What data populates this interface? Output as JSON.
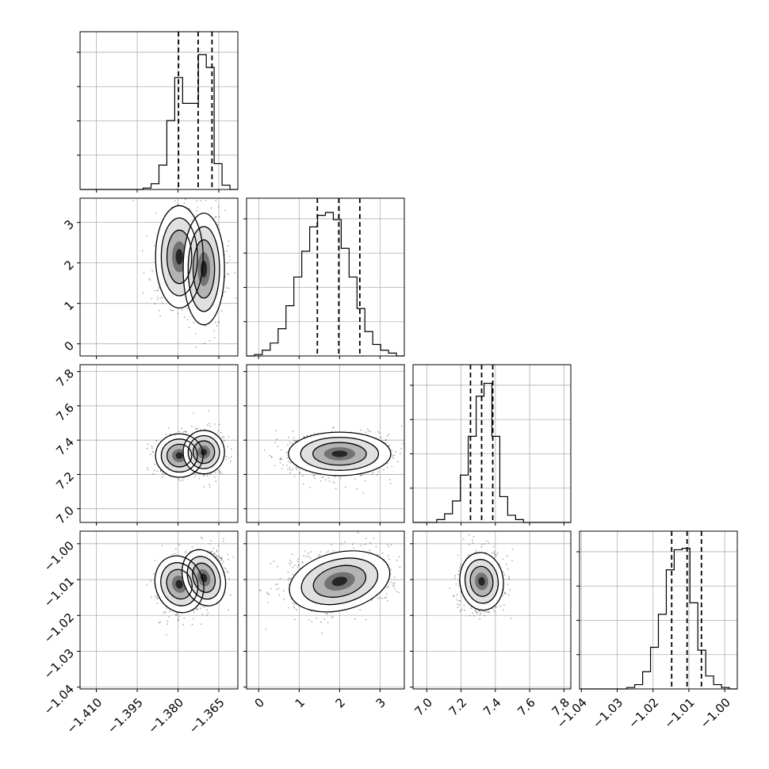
{
  "chart_data": {
    "type": "scatter",
    "title": "",
    "grid": true,
    "parameters": [
      {
        "range": [
          -1.416,
          -1.358
        ],
        "ticks": [
          -1.41,
          -1.395,
          -1.38,
          -1.365
        ],
        "tick_labels": [
          "−1.410",
          "−1.395",
          "−1.380",
          "−1.365"
        ],
        "quantiles": [
          -1.3798,
          -1.3726,
          -1.3675
        ],
        "hist_bins": [
          0,
          0,
          0,
          0,
          0,
          0,
          0,
          0,
          0.01,
          0.04,
          0.17,
          0.48,
          0.78,
          0.6,
          0.6,
          0.94,
          0.85,
          0.18,
          0.03,
          0
        ]
      },
      {
        "range": [
          -0.3,
          3.6
        ],
        "ticks": [
          0,
          1,
          2,
          3
        ],
        "tick_labels": [
          "0",
          "1",
          "2",
          "3"
        ],
        "quantiles": [
          1.45,
          1.98,
          2.5
        ],
        "hist_bins": [
          0,
          0.01,
          0.04,
          0.09,
          0.19,
          0.35,
          0.55,
          0.73,
          0.9,
          0.98,
          1.0,
          0.95,
          0.75,
          0.55,
          0.33,
          0.17,
          0.08,
          0.04,
          0.02,
          0
        ]
      },
      {
        "range": [
          6.92,
          7.84
        ],
        "ticks": [
          7.0,
          7.2,
          7.4,
          7.6,
          7.8
        ],
        "tick_labels": [
          "7.0",
          "7.2",
          "7.4",
          "7.6",
          "7.8"
        ],
        "quantiles": [
          7.255,
          7.32,
          7.385
        ],
        "hist_bins": [
          0,
          0,
          0,
          0.02,
          0.06,
          0.15,
          0.33,
          0.6,
          0.88,
          0.97,
          0.6,
          0.18,
          0.05,
          0.02,
          0,
          0,
          0,
          0,
          0,
          0
        ]
      },
      {
        "range": [
          -1.0405,
          -0.9965
        ],
        "ticks": [
          -1.04,
          -1.03,
          -1.02,
          -1.01,
          -1.0
        ],
        "tick_labels": [
          "−1.04",
          "−1.03",
          "−1.02",
          "−1.01",
          "−1.00"
        ],
        "quantiles": [
          -1.0148,
          -1.0105,
          -1.0065
        ],
        "hist_bins": [
          0,
          0,
          0,
          0,
          0,
          0,
          0.01,
          0.03,
          0.12,
          0.29,
          0.52,
          0.83,
          0.97,
          0.98,
          0.6,
          0.27,
          0.09,
          0.03,
          0.01,
          0
        ]
      }
    ],
    "y_tick_labels": {
      "1": [
        "0",
        "1",
        "2",
        "3"
      ],
      "2": [
        "7.0",
        "7.2",
        "7.4",
        "7.6",
        "7.8"
      ],
      "3": [
        "−1.04",
        "−1.03",
        "−1.02",
        "−1.01",
        "−1.00"
      ]
    },
    "pairs": [
      {
        "x": 0,
        "y": 1,
        "components": [
          {
            "mean": [
              -1.3795,
              2.15
            ],
            "sd": [
              0.0038,
              0.55
            ],
            "rho": 0.0,
            "weight": 0.45
          },
          {
            "mean": [
              -1.3705,
              1.85
            ],
            "sd": [
              0.0033,
              0.6
            ],
            "rho": 0.0,
            "weight": 0.55
          }
        ]
      },
      {
        "x": 0,
        "y": 2,
        "components": [
          {
            "mean": [
              -1.3795,
              7.31
            ],
            "sd": [
              0.0038,
              0.055
            ],
            "rho": 0.0,
            "weight": 0.45
          },
          {
            "mean": [
              -1.3705,
              7.33
            ],
            "sd": [
              0.0033,
              0.055
            ],
            "rho": 0.0,
            "weight": 0.55
          }
        ]
      },
      {
        "x": 0,
        "y": 3,
        "components": [
          {
            "mean": [
              -1.3795,
              -1.0113
            ],
            "sd": [
              0.0038,
              0.0035
            ],
            "rho": 0.3,
            "weight": 0.45
          },
          {
            "mean": [
              -1.3705,
              -1.0095
            ],
            "sd": [
              0.0033,
              0.0035
            ],
            "rho": 0.3,
            "weight": 0.55
          }
        ]
      },
      {
        "x": 1,
        "y": 2,
        "components": [
          {
            "mean": [
              2.0,
              7.32
            ],
            "sd": [
              0.55,
              0.055
            ],
            "rho": 0.0,
            "weight": 1.0
          }
        ]
      },
      {
        "x": 1,
        "y": 3,
        "components": [
          {
            "mean": [
              2.0,
              -1.0105
            ],
            "sd": [
              0.55,
              0.0035
            ],
            "rho": 0.2,
            "weight": 1.0
          }
        ]
      },
      {
        "x": 2,
        "y": 3,
        "components": [
          {
            "mean": [
              7.32,
              -1.0105
            ],
            "sd": [
              0.055,
              0.0035
            ],
            "rho": 0.1,
            "weight": 1.0
          }
        ]
      }
    ]
  }
}
